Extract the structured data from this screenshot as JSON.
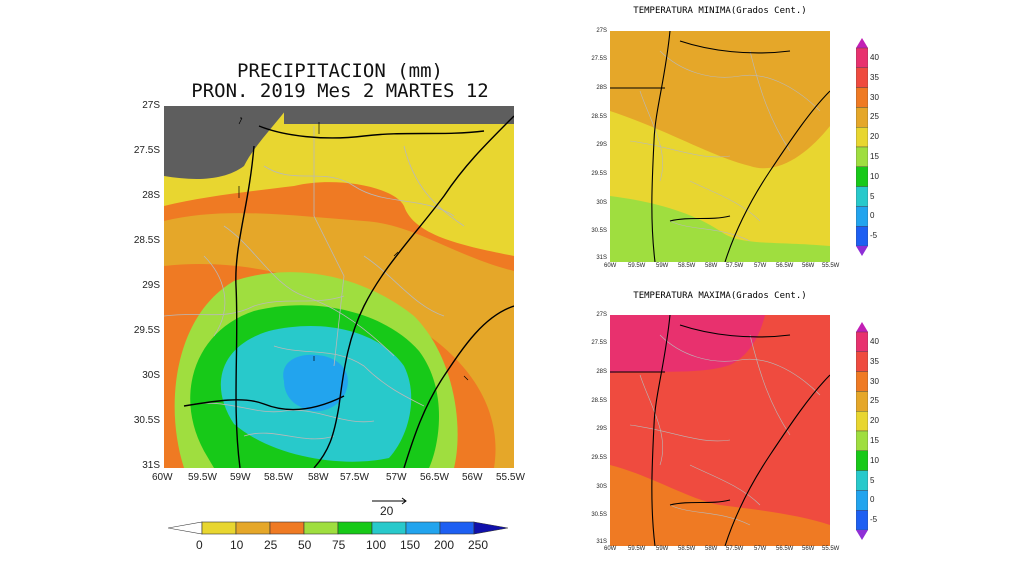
{
  "main_map": {
    "title_line1": "PRECIPITACION (mm)",
    "title_line2": "PRON. 2019 Mes 2 MARTES 12",
    "lat_ticks": [
      "27S",
      "27.5S",
      "28S",
      "28.5S",
      "29S",
      "29.5S",
      "30S",
      "30.5S",
      "31S"
    ],
    "lon_ticks": [
      "60W",
      "59.5W",
      "59W",
      "58.5W",
      "58W",
      "57.5W",
      "57W",
      "56.5W",
      "56W",
      "55.5W"
    ],
    "vector_ref_label": "20",
    "colorbar": {
      "labels": [
        "0",
        "10",
        "25",
        "50",
        "75",
        "100",
        "150",
        "200",
        "250"
      ],
      "colors": [
        "#ffffff",
        "#e8d630",
        "#e5a729",
        "#ef7a23",
        "#9fde3f",
        "#17c918",
        "#28c9cb",
        "#22a4ee",
        "#1d5ff2",
        "#1010aa"
      ]
    }
  },
  "tmin_map": {
    "title": "TEMPERATURA MINIMA(Grados Cent.)",
    "lat_ticks": [
      "27S",
      "27.5S",
      "28S",
      "28.5S",
      "29S",
      "29.5S",
      "30S",
      "30.5S",
      "31S"
    ],
    "lon_ticks": [
      "60W",
      "59.5W",
      "59W",
      "58.5W",
      "58W",
      "57.5W",
      "57W",
      "56.5W",
      "56W",
      "55.5W"
    ]
  },
  "tmax_map": {
    "title": "TEMPERATURA MAXIMA(Grados Cent.)",
    "lat_ticks": [
      "27S",
      "27.5S",
      "28S",
      "28.5S",
      "29S",
      "29.5S",
      "30S",
      "30.5S",
      "31S"
    ],
    "lon_ticks": [
      "60W",
      "59.5W",
      "59W",
      "58.5W",
      "58W",
      "57.5W",
      "57W",
      "56.5W",
      "56W",
      "55.5W"
    ]
  },
  "temp_colorbar": {
    "labels": [
      "40",
      "35",
      "30",
      "25",
      "20",
      "15",
      "10",
      "5",
      "0",
      "-5"
    ],
    "colors": [
      "#e8316e",
      "#ef4b3f",
      "#ef7a23",
      "#e5a729",
      "#e8d630",
      "#9fde3f",
      "#17c918",
      "#28c9cb",
      "#22a4ee",
      "#1d5ff2"
    ]
  }
}
